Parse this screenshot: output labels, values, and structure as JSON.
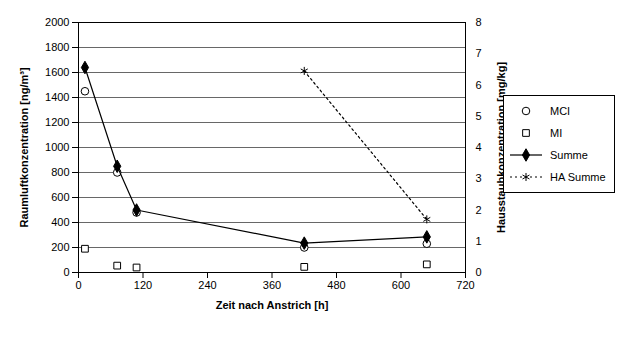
{
  "chart_data": {
    "type": "line",
    "x_label": "Zeit nach Anstrich [h]",
    "y_label": "Raumluftkonzentration [ng/m³]",
    "y2_label": "Hausstaubkonzentration [mg/kg]",
    "x": [
      12,
      72,
      108,
      420,
      648
    ],
    "xlim": [
      0,
      720
    ],
    "xticks": [
      0,
      120,
      240,
      360,
      480,
      600,
      720
    ],
    "ylim": [
      0,
      2000
    ],
    "yticks": [
      0,
      200,
      400,
      600,
      800,
      1000,
      1200,
      1400,
      1600,
      1800,
      2000
    ],
    "y2lim": [
      0,
      8
    ],
    "y2ticks": [
      0,
      1,
      2,
      3,
      4,
      5,
      6,
      7,
      8
    ],
    "grid": true,
    "legend": "right",
    "series": [
      {
        "name": "MCI",
        "color": "#000000",
        "marker": "circle",
        "line_style": "none",
        "values": [
          1450,
          800,
          480,
          200,
          230
        ]
      },
      {
        "name": "MI",
        "color": "#000000",
        "marker": "square",
        "line_style": "none",
        "values": [
          190,
          55,
          40,
          45,
          65
        ]
      },
      {
        "name": "Summe",
        "color": "#000000",
        "marker": "diamond",
        "line_style": "solid",
        "values": [
          1640,
          850,
          500,
          235,
          285
        ]
      },
      {
        "name": "HA Summe",
        "color": "#000000",
        "marker": "asterisk",
        "line_style": "dotted",
        "axis": "y2",
        "values": [
          null,
          null,
          null,
          6.45,
          1.7
        ]
      }
    ]
  }
}
